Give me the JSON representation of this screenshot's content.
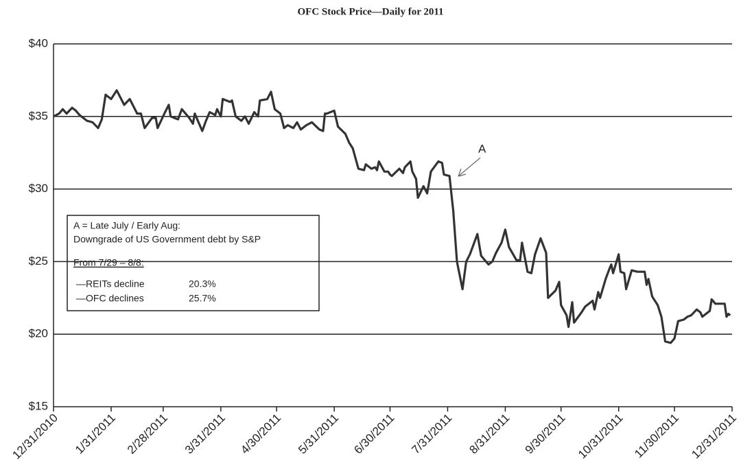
{
  "chart_data": {
    "type": "line",
    "title": "OFC Stock Price—Daily for 2011",
    "x": [
      "12/31/2010",
      "1/3/2011",
      "1/5/2011",
      "1/7/2011",
      "1/10/2011",
      "1/12/2011",
      "1/14/2011",
      "1/18/2011",
      "1/21/2011",
      "1/24/2011",
      "1/26/2011",
      "1/28/2011",
      "1/31/2011",
      "2/3/2011",
      "2/7/2011",
      "2/10/2011",
      "2/14/2011",
      "2/16/2011",
      "2/18/2011",
      "2/22/2011",
      "2/24/2011",
      "2/25/2011",
      "3/1/2011",
      "3/3/2011",
      "3/4/2011",
      "3/8/2011",
      "3/10/2011",
      "3/14/2011",
      "3/16/2011",
      "3/17/2011",
      "3/21/2011",
      "3/23/2011",
      "3/25/2011",
      "3/28/2011",
      "3/29/2011",
      "3/31/2011",
      "4/1/2011",
      "4/5/2011",
      "4/6/2011",
      "4/8/2011",
      "4/11/2011",
      "4/13/2011",
      "4/15/2011",
      "4/18/2011",
      "4/20/2011",
      "4/21/2011",
      "4/25/2011",
      "4/27/2011",
      "4/29/2011",
      "5/2/2011",
      "5/4/2011",
      "5/6/2011",
      "5/9/2011",
      "5/11/2011",
      "5/13/2011",
      "5/16/2011",
      "5/19/2011",
      "5/23/2011",
      "5/25/2011",
      "5/26/2011",
      "5/27/2011",
      "5/31/2011",
      "6/2/2011",
      "6/6/2011",
      "6/8/2011",
      "6/10/2011",
      "6/13/2011",
      "6/16/2011",
      "6/17/2011",
      "6/20/2011",
      "6/22/2011",
      "6/23/2011",
      "6/24/2011",
      "6/27/2011",
      "6/29/2011",
      "6/30/2011",
      "7/1/2011",
      "7/5/2011",
      "7/7/2011",
      "7/8/2011",
      "7/11/2011",
      "7/12/2011",
      "7/14/2011",
      "7/15/2011",
      "7/18/2011",
      "7/20/2011",
      "7/22/2011",
      "7/26/2011",
      "7/28/2011",
      "7/29/2011",
      "8/1/2011",
      "8/3/2011",
      "8/5/2011",
      "8/8/2011",
      "8/10/2011",
      "8/12/2011",
      "8/16/2011",
      "8/18/2011",
      "8/22/2011",
      "8/24/2011",
      "8/26/2011",
      "8/29/2011",
      "8/31/2011",
      "9/2/2011",
      "9/6/2011",
      "9/8/2011",
      "9/9/2011",
      "9/12/2011",
      "9/14/2011",
      "9/16/2011",
      "9/19/2011",
      "9/22/2011",
      "9/23/2011",
      "9/27/2011",
      "9/29/2011",
      "9/30/2011",
      "10/3/2011",
      "10/4/2011",
      "10/6/2011",
      "10/7/2011",
      "10/11/2011",
      "10/13/2011",
      "10/17/2011",
      "10/18/2011",
      "10/20/2011",
      "10/21/2011",
      "10/24/2011",
      "10/26/2011",
      "10/27/2011",
      "10/28/2011",
      "10/31/2011",
      "11/1/2011",
      "11/3/2011",
      "11/4/2011",
      "11/7/2011",
      "11/10/2011",
      "11/14/2011",
      "11/15/2011",
      "11/16/2011",
      "11/18/2011",
      "11/21/2011",
      "11/23/2011",
      "11/25/2011",
      "11/28/2011",
      "11/30/2011",
      "12/2/2011",
      "12/5/2011",
      "12/7/2011",
      "12/9/2011",
      "12/12/2011",
      "12/14/2011",
      "12/15/2011",
      "12/19/2011",
      "12/20/2011",
      "12/22/2011",
      "12/27/2011",
      "12/28/2011",
      "12/29/2011",
      "12/30/2011"
    ],
    "series": [
      {
        "name": "OFC",
        "color": "#333333",
        "values": [
          35.0,
          35.2,
          35.5,
          35.2,
          35.6,
          35.4,
          35.1,
          34.7,
          34.6,
          34.2,
          34.8,
          36.5,
          36.2,
          36.8,
          35.8,
          36.2,
          35.2,
          35.2,
          34.2,
          34.9,
          34.9,
          34.2,
          35.3,
          35.8,
          35.0,
          34.8,
          35.5,
          34.9,
          34.5,
          35.2,
          34.0,
          34.7,
          35.3,
          35.1,
          35.5,
          35.0,
          36.2,
          36.0,
          36.1,
          35.0,
          34.7,
          35.0,
          34.5,
          35.3,
          35.0,
          36.1,
          36.2,
          36.7,
          35.5,
          35.2,
          34.2,
          34.4,
          34.2,
          34.6,
          34.1,
          34.4,
          34.6,
          34.1,
          34.0,
          35.2,
          35.2,
          35.4,
          34.3,
          33.8,
          33.2,
          32.8,
          31.4,
          31.3,
          31.7,
          31.4,
          31.5,
          31.3,
          31.9,
          31.2,
          31.2,
          31.0,
          30.9,
          31.4,
          31.1,
          31.5,
          31.9,
          31.2,
          30.7,
          29.4,
          30.2,
          29.7,
          31.2,
          31.9,
          31.8,
          31.0,
          30.9,
          28.5,
          25.0,
          23.1,
          25.0,
          25.5,
          26.9,
          25.4,
          24.8,
          25.0,
          25.6,
          26.3,
          27.2,
          26.0,
          25.1,
          25.1,
          26.3,
          24.3,
          24.2,
          25.5,
          26.6,
          25.6,
          22.5,
          23.0,
          23.6,
          22.0,
          21.3,
          20.5,
          22.2,
          20.8,
          21.5,
          21.9,
          22.3,
          21.7,
          22.9,
          22.5,
          23.8,
          24.5,
          24.8,
          24.2,
          25.5,
          24.3,
          24.2,
          23.1,
          24.4,
          24.3,
          24.3,
          23.4,
          23.8,
          22.6,
          22.0,
          21.2,
          19.5,
          19.4,
          19.7,
          20.9,
          21.0,
          21.2,
          21.3,
          21.7,
          21.5,
          21.2,
          21.6,
          22.4,
          22.1,
          22.1,
          21.2,
          21.4,
          21.3
        ]
      }
    ],
    "xlim": [
      "12/31/2010",
      "12/31/2011"
    ],
    "xticks": [
      "12/31/2010",
      "1/31/2011",
      "2/28/2011",
      "3/31/2011",
      "4/30/2011",
      "5/31/2011",
      "6/30/2011",
      "7/31/2011",
      "8/31/2011",
      "9/30/2011",
      "10/31/2011",
      "11/30/2011",
      "12/31/2011"
    ],
    "ylim": [
      15,
      40
    ],
    "yticks": [
      {
        "value": 15,
        "label": "$15"
      },
      {
        "value": 20,
        "label": "$20"
      },
      {
        "value": 25,
        "label": "$25"
      },
      {
        "value": 30,
        "label": "$30"
      },
      {
        "value": 35,
        "label": "$35"
      },
      {
        "value": 40,
        "label": "$40"
      }
    ],
    "grid": true,
    "annotations": {
      "marker": "A",
      "box": [
        "A = Late July / Early Aug:",
        "Downgrade of US Government debt by S&P",
        "From 7/29 – 8/8:",
        "—REITs decline",
        "20.3%",
        "—OFC declines",
        "25.7%"
      ]
    }
  }
}
